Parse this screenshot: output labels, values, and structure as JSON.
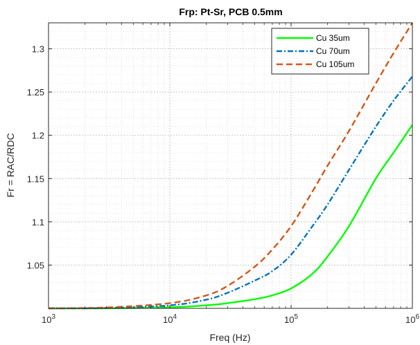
{
  "chart_data": {
    "type": "line",
    "title": "Frp: Pt-Sr, PCB 0.5mm",
    "xlabel": "Freq (Hz)",
    "ylabel": "Fr = RAC/RDC",
    "xscale": "log",
    "xlim": [
      1000,
      1000000
    ],
    "ylim": [
      1.0,
      1.33
    ],
    "x_ticks": [
      {
        "value": 1000,
        "base": "10",
        "exp": "3"
      },
      {
        "value": 10000,
        "base": "10",
        "exp": "4"
      },
      {
        "value": 100000,
        "base": "10",
        "exp": "5"
      },
      {
        "value": 1000000,
        "base": "10",
        "exp": "6"
      }
    ],
    "y_ticks": [
      {
        "value": 1.05,
        "label": "1.05"
      },
      {
        "value": 1.1,
        "label": "1.1"
      },
      {
        "value": 1.15,
        "label": "1.15"
      },
      {
        "value": 1.2,
        "label": "1.2"
      },
      {
        "value": 1.25,
        "label": "1.25"
      },
      {
        "value": 1.3,
        "label": "1.3"
      }
    ],
    "grid": true,
    "minor_grid": true,
    "legend_position": "top-right",
    "x": [
      1000,
      3000,
      10000,
      20000,
      30000,
      50000,
      70000,
      100000,
      150000,
      200000,
      300000,
      500000,
      700000,
      1000000
    ],
    "series": [
      {
        "name": "Cu 35um",
        "color": "#00ff00",
        "dash": "solid",
        "values": [
          1.0,
          1.0001,
          1.0012,
          1.0035,
          1.006,
          1.0105,
          1.015,
          1.023,
          1.04,
          1.06,
          1.095,
          1.15,
          1.18,
          1.212
        ]
      },
      {
        "name": "Cu 70um",
        "color": "#0072bd",
        "dash": "dashdot",
        "values": [
          1.0,
          1.0004,
          1.0035,
          1.01,
          1.018,
          1.032,
          1.043,
          1.062,
          1.095,
          1.12,
          1.16,
          1.21,
          1.24,
          1.268
        ]
      },
      {
        "name": "Cu 105um",
        "color": "#d95319",
        "dash": "dashed",
        "values": [
          1.0,
          1.001,
          1.006,
          1.015,
          1.026,
          1.048,
          1.068,
          1.095,
          1.135,
          1.165,
          1.205,
          1.26,
          1.295,
          1.33
        ]
      }
    ]
  }
}
